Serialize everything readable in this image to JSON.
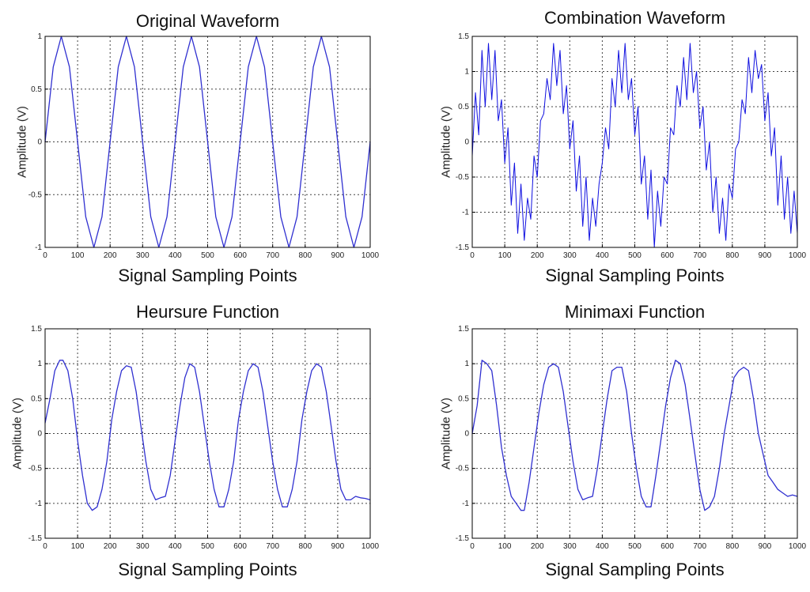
{
  "chart_data": [
    {
      "type": "line",
      "title": "Original Waveform",
      "xlabel": "Signal Sampling Points",
      "ylabel": "Amplitude (V)",
      "xlim": [
        0,
        1000
      ],
      "ylim": [
        -1,
        1
      ],
      "xticks": [
        "0",
        "100",
        "200",
        "300",
        "400",
        "500",
        "600",
        "700",
        "800",
        "900",
        "1000"
      ],
      "yticks": [
        "-1",
        "-0.5",
        "0",
        "0.5",
        "1"
      ],
      "grid": true,
      "series": [
        {
          "color": "#3030d0",
          "x": [
            0,
            25,
            50,
            75,
            100,
            125,
            150,
            175,
            200,
            225,
            250,
            275,
            300,
            325,
            350,
            375,
            400,
            425,
            450,
            475,
            500,
            525,
            550,
            575,
            600,
            625,
            650,
            675,
            700,
            725,
            750,
            775,
            800,
            825,
            850,
            875,
            900,
            925,
            950,
            975,
            1000
          ],
          "values": [
            0,
            0.71,
            1,
            0.71,
            0,
            -0.71,
            -1,
            -0.71,
            0,
            0.71,
            1,
            0.71,
            0,
            -0.71,
            -1,
            -0.71,
            0,
            0.71,
            1,
            0.71,
            0,
            -0.71,
            -1,
            -0.71,
            0,
            0.71,
            1,
            0.71,
            0,
            -0.71,
            -1,
            -0.71,
            0,
            0.71,
            1,
            0.71,
            0,
            -0.71,
            -1,
            -0.71,
            0
          ]
        }
      ]
    },
    {
      "type": "line",
      "title": "Combination Waveform",
      "xlabel": "Signal Sampling Points",
      "ylabel": "Amplitude (V)",
      "xlim": [
        0,
        1000
      ],
      "ylim": [
        -1.5,
        1.5
      ],
      "xticks": [
        "0",
        "100",
        "200",
        "300",
        "400",
        "500",
        "600",
        "700",
        "800",
        "900",
        "1000"
      ],
      "yticks": [
        "-1.5",
        "-1",
        "-0.5",
        "0",
        "0.5",
        "1",
        "1.5"
      ],
      "grid": true,
      "series": [
        {
          "color": "#1010e0",
          "x": [
            0,
            10,
            20,
            30,
            40,
            50,
            60,
            70,
            80,
            90,
            100,
            110,
            120,
            130,
            140,
            150,
            160,
            170,
            180,
            190,
            200,
            210,
            220,
            230,
            240,
            250,
            260,
            270,
            280,
            290,
            300,
            310,
            320,
            330,
            340,
            350,
            360,
            370,
            380,
            390,
            400,
            410,
            420,
            430,
            440,
            450,
            460,
            470,
            480,
            490,
            500,
            510,
            520,
            530,
            540,
            550,
            560,
            570,
            580,
            590,
            600,
            610,
            620,
            630,
            640,
            650,
            660,
            670,
            680,
            690,
            700,
            710,
            720,
            730,
            740,
            750,
            760,
            770,
            780,
            790,
            800,
            810,
            820,
            830,
            840,
            850,
            860,
            870,
            880,
            890,
            900,
            910,
            920,
            930,
            940,
            950,
            960,
            970,
            980,
            990,
            1000
          ],
          "values": [
            -0.2,
            0.7,
            0.1,
            1.3,
            0.5,
            1.4,
            0.6,
            1.3,
            0.3,
            0.6,
            -0.3,
            0.2,
            -0.9,
            -0.3,
            -1.3,
            -0.6,
            -1.4,
            -0.8,
            -1.1,
            -0.2,
            -0.5,
            0.3,
            0.4,
            0.9,
            0.6,
            1.4,
            0.8,
            1.3,
            0.4,
            0.8,
            -0.1,
            0.3,
            -0.7,
            -0.2,
            -1.2,
            -0.5,
            -1.4,
            -0.8,
            -1.2,
            -0.6,
            -0.3,
            0.2,
            -0.1,
            0.9,
            0.5,
            1.3,
            0.7,
            1.4,
            0.6,
            0.9,
            0.1,
            0.5,
            -0.6,
            -0.2,
            -1.1,
            -0.4,
            -1.5,
            -0.7,
            -1.2,
            -0.5,
            -0.6,
            0.2,
            0.1,
            0.8,
            0.5,
            1.2,
            0.6,
            1.4,
            0.7,
            1.0,
            0.2,
            0.5,
            -0.4,
            0.0,
            -1.0,
            -0.5,
            -1.3,
            -0.8,
            -1.4,
            -0.6,
            -0.8,
            -0.1,
            0.0,
            0.6,
            0.4,
            1.2,
            0.7,
            1.3,
            0.9,
            1.1,
            0.3,
            0.7,
            -0.2,
            0.2,
            -0.9,
            -0.2,
            -1.1,
            -0.5,
            -1.3,
            -0.7,
            -1.3
          ]
        }
      ]
    },
    {
      "type": "line",
      "title": "Heursure Function",
      "xlabel": "Signal Sampling Points",
      "ylabel": "Amplitude (V)",
      "xlim": [
        0,
        1000
      ],
      "ylim": [
        -1.5,
        1.5
      ],
      "xticks": [
        "0",
        "100",
        "200",
        "300",
        "400",
        "500",
        "600",
        "700",
        "800",
        "900",
        "1000"
      ],
      "yticks": [
        "-1.5",
        "-1",
        "-0.5",
        "0",
        "0.5",
        "1",
        "1.5"
      ],
      "grid": true,
      "series": [
        {
          "color": "#3030d0",
          "x": [
            0,
            15,
            30,
            45,
            55,
            70,
            85,
            100,
            115,
            130,
            145,
            160,
            175,
            190,
            205,
            220,
            235,
            250,
            265,
            280,
            295,
            310,
            325,
            340,
            355,
            370,
            385,
            400,
            415,
            430,
            445,
            460,
            475,
            490,
            505,
            520,
            535,
            550,
            565,
            580,
            595,
            610,
            625,
            640,
            655,
            670,
            685,
            700,
            715,
            730,
            745,
            760,
            775,
            790,
            805,
            820,
            835,
            850,
            865,
            880,
            895,
            910,
            925,
            940,
            955,
            970,
            985,
            1000
          ],
          "values": [
            0.15,
            0.5,
            0.9,
            1.05,
            1.05,
            0.9,
            0.5,
            -0.1,
            -0.6,
            -1.0,
            -1.1,
            -1.05,
            -0.8,
            -0.4,
            0.2,
            0.6,
            0.9,
            0.97,
            0.95,
            0.6,
            0.1,
            -0.4,
            -0.8,
            -0.95,
            -0.92,
            -0.9,
            -0.6,
            -0.1,
            0.4,
            0.8,
            1.0,
            0.95,
            0.6,
            0.1,
            -0.4,
            -0.8,
            -1.05,
            -1.05,
            -0.8,
            -0.4,
            0.2,
            0.6,
            0.9,
            1.0,
            0.95,
            0.6,
            0.1,
            -0.4,
            -0.8,
            -1.05,
            -1.05,
            -0.8,
            -0.4,
            0.2,
            0.6,
            0.9,
            1.0,
            0.95,
            0.6,
            0.1,
            -0.4,
            -0.8,
            -0.95,
            -0.95,
            -0.9,
            -0.92,
            -0.93,
            -0.95
          ]
        }
      ]
    },
    {
      "type": "line",
      "title": "Minimaxi Function",
      "xlabel": "Signal Sampling Points",
      "ylabel": "Amplitude (V)",
      "xlim": [
        0,
        1000
      ],
      "ylim": [
        -1.5,
        1.5
      ],
      "xticks": [
        "0",
        "100",
        "200",
        "300",
        "400",
        "500",
        "600",
        "700",
        "800",
        "900",
        "1000"
      ],
      "yticks": [
        "-1.5",
        "-1",
        "-0.5",
        "0",
        "0.5",
        "1",
        "1.5"
      ],
      "grid": true,
      "series": [
        {
          "color": "#3030d0",
          "x": [
            0,
            15,
            30,
            45,
            60,
            75,
            90,
            105,
            120,
            135,
            150,
            160,
            175,
            190,
            205,
            220,
            235,
            250,
            265,
            280,
            295,
            310,
            325,
            340,
            355,
            370,
            385,
            400,
            415,
            430,
            445,
            460,
            475,
            490,
            505,
            520,
            535,
            550,
            565,
            580,
            595,
            610,
            625,
            640,
            655,
            670,
            685,
            700,
            715,
            730,
            745,
            760,
            775,
            790,
            805,
            820,
            835,
            850,
            865,
            880,
            895,
            910,
            925,
            940,
            955,
            970,
            985,
            1000
          ],
          "values": [
            0,
            0.4,
            1.05,
            1.0,
            0.9,
            0.4,
            -0.2,
            -0.6,
            -0.9,
            -1.0,
            -1.1,
            -1.1,
            -0.7,
            -0.2,
            0.3,
            0.7,
            0.95,
            1.0,
            0.95,
            0.6,
            0.1,
            -0.4,
            -0.8,
            -0.95,
            -0.92,
            -0.9,
            -0.5,
            0.0,
            0.5,
            0.9,
            0.95,
            0.95,
            0.6,
            0.0,
            -0.5,
            -0.9,
            -1.05,
            -1.05,
            -0.6,
            -0.1,
            0.4,
            0.8,
            1.05,
            1.0,
            0.7,
            0.2,
            -0.3,
            -0.8,
            -1.1,
            -1.05,
            -0.9,
            -0.5,
            0.0,
            0.4,
            0.8,
            0.9,
            0.95,
            0.9,
            0.5,
            0.0,
            -0.3,
            -0.6,
            -0.7,
            -0.8,
            -0.85,
            -0.9,
            -0.88,
            -0.9
          ]
        }
      ]
    }
  ]
}
